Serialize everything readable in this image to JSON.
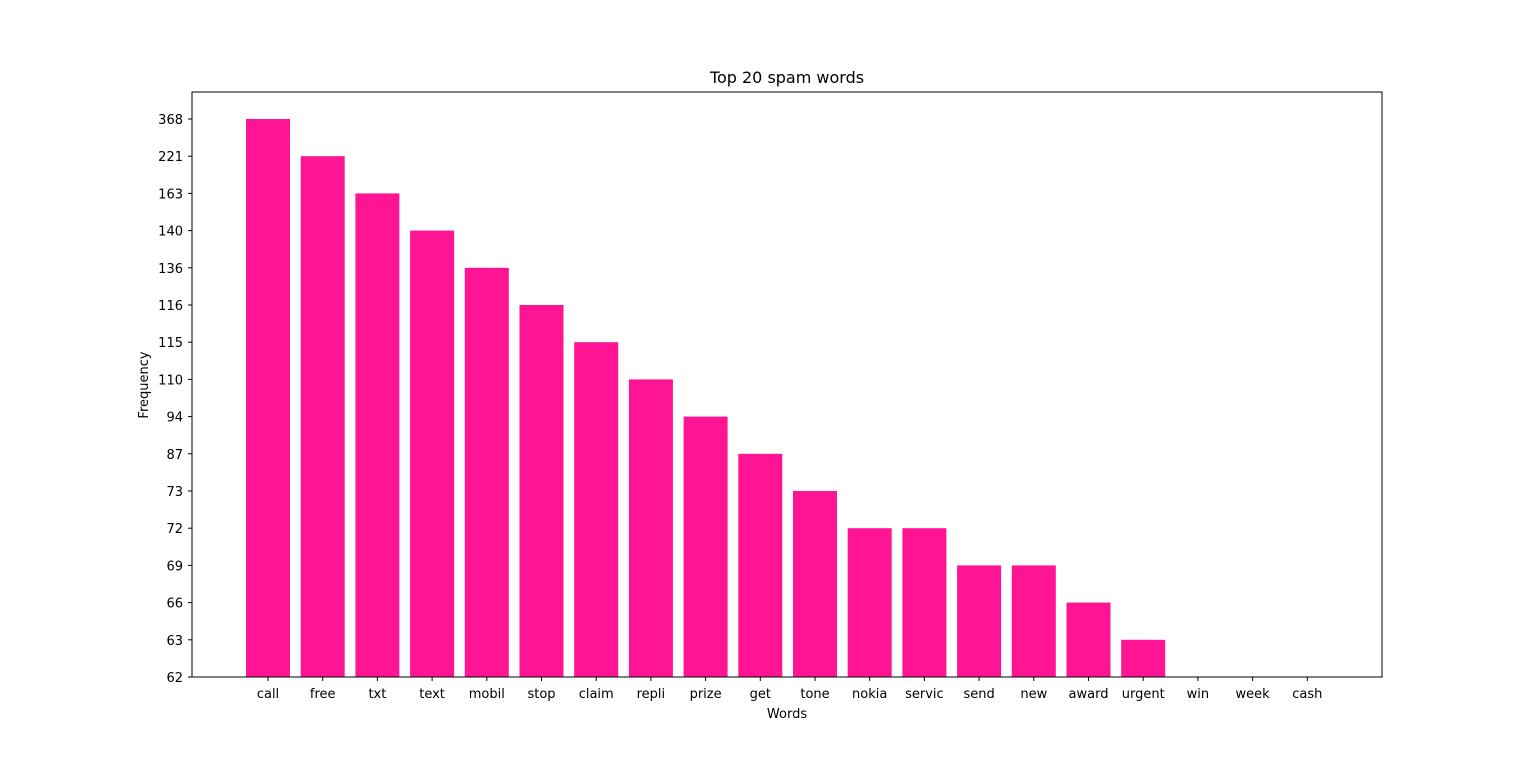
{
  "chart_data": {
    "type": "bar",
    "title": "Top 20 spam words",
    "xlabel": "Words",
    "ylabel": "Frequency",
    "y_axis_scale": "categorical (each distinct frequency gets one evenly spaced tick)",
    "categories": [
      "call",
      "free",
      "txt",
      "text",
      "mobil",
      "stop",
      "claim",
      "repli",
      "prize",
      "get",
      "tone",
      "nokia",
      "servic",
      "send",
      "new",
      "award",
      "urgent",
      "win",
      "week",
      "cash"
    ],
    "values": [
      368,
      221,
      163,
      140,
      136,
      116,
      115,
      110,
      94,
      87,
      73,
      72,
      72,
      69,
      69,
      66,
      63,
      62,
      62,
      62
    ],
    "ytick_labels": [
      "62",
      "63",
      "66",
      "69",
      "72",
      "73",
      "87",
      "94",
      "110",
      "115",
      "116",
      "136",
      "140",
      "163",
      "221",
      "368"
    ],
    "bar_color": "#ff1493",
    "grid": false
  }
}
